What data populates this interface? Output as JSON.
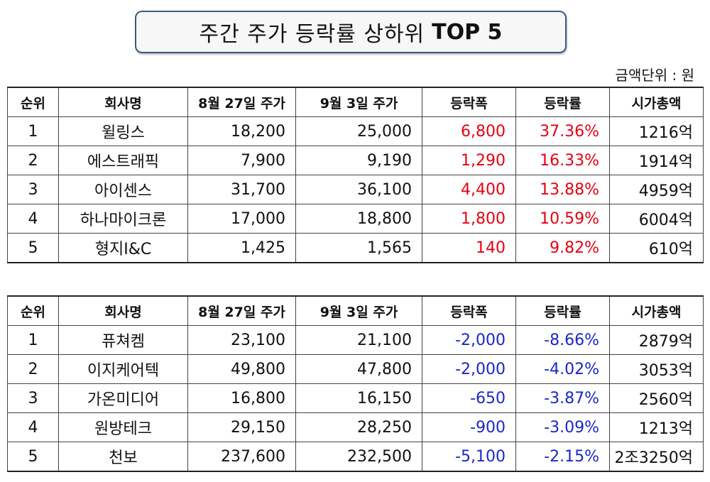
{
  "title": {
    "main": "주간 주가 등락률 상하위",
    "emphasis": "TOP 5"
  },
  "unit_label": "금액단위 : 원",
  "headers": [
    "순위",
    "회사명",
    "8월 27일 주가",
    "9월 3일 주가",
    "등락폭",
    "등락률",
    "시가총액"
  ],
  "colors": {
    "up": "#e60012",
    "down": "#1a27c9",
    "border": "#3d5a80"
  },
  "gainers": [
    {
      "rank": "1",
      "company": "윌링스",
      "price_0827": "18,200",
      "price_0903": "25,000",
      "change": "6,800",
      "rate": "37.36%",
      "market_cap": "1216억"
    },
    {
      "rank": "2",
      "company": "에스트래픽",
      "price_0827": "7,900",
      "price_0903": "9,190",
      "change": "1,290",
      "rate": "16.33%",
      "market_cap": "1914억"
    },
    {
      "rank": "3",
      "company": "아이센스",
      "price_0827": "31,700",
      "price_0903": "36,100",
      "change": "4,400",
      "rate": "13.88%",
      "market_cap": "4959억"
    },
    {
      "rank": "4",
      "company": "하나마이크론",
      "price_0827": "17,000",
      "price_0903": "18,800",
      "change": "1,800",
      "rate": "10.59%",
      "market_cap": "6004억"
    },
    {
      "rank": "5",
      "company": "형지I&C",
      "price_0827": "1,425",
      "price_0903": "1,565",
      "change": "140",
      "rate": "9.82%",
      "market_cap": "610억"
    }
  ],
  "losers": [
    {
      "rank": "1",
      "company": "퓨쳐켐",
      "price_0827": "23,100",
      "price_0903": "21,100",
      "change": "-2,000",
      "rate": "-8.66%",
      "market_cap": "2879억"
    },
    {
      "rank": "2",
      "company": "이지케어텍",
      "price_0827": "49,800",
      "price_0903": "47,800",
      "change": "-2,000",
      "rate": "-4.02%",
      "market_cap": "3053억"
    },
    {
      "rank": "3",
      "company": "가온미디어",
      "price_0827": "16,800",
      "price_0903": "16,150",
      "change": "-650",
      "rate": "-3.87%",
      "market_cap": "2560억"
    },
    {
      "rank": "4",
      "company": "원방테크",
      "price_0827": "29,150",
      "price_0903": "28,250",
      "change": "-900",
      "rate": "-3.09%",
      "market_cap": "1213억"
    },
    {
      "rank": "5",
      "company": "천보",
      "price_0827": "237,600",
      "price_0903": "232,500",
      "change": "-5,100",
      "rate": "-2.15%",
      "market_cap": "2조3250억"
    }
  ]
}
